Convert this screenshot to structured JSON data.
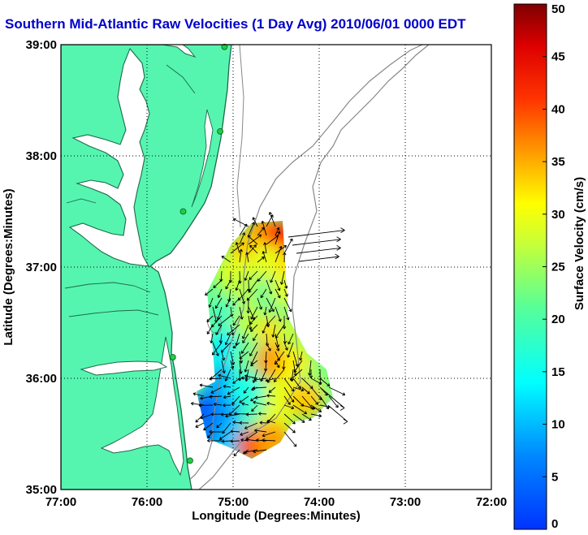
{
  "title": "Southern Mid-Atlantic Raw Velocities (1 Day Avg) 2010/06/01 0000 EDT",
  "colors": {
    "title": "#0000cc",
    "land": "#55f5b0",
    "water": "#ffffff",
    "coast": "#1e6a48",
    "bathymetry": "#888888",
    "vectors": "#000000",
    "stations": "#22cc44",
    "grid": "#000000"
  },
  "chart_data": {
    "type": "map",
    "xlabel": "Longitude (Degrees:Minutes)",
    "ylabel": "Latitude (Degrees:Minutes)",
    "x_ticks": [
      "77:00",
      "76:00",
      "75:00",
      "74:00",
      "73:00",
      "72:00"
    ],
    "y_ticks": [
      "39:00",
      "38:00",
      "37:00",
      "36:00",
      "35:00"
    ],
    "xlim": [
      -77.0,
      -72.0
    ],
    "ylim": [
      35.0,
      39.0
    ],
    "grid": "dotted",
    "legend_position": "right",
    "colorbar": {
      "label": "Surface Velocity (cm/s)",
      "range": [
        0,
        50
      ],
      "ticks": [
        "0",
        "5",
        "10",
        "15",
        "20",
        "25",
        "30",
        "35",
        "40",
        "45",
        "50"
      ],
      "colormap": "jet"
    },
    "stations": [
      {
        "lon": -75.1,
        "lat": 38.98
      },
      {
        "lon": -75.15,
        "lat": 38.22
      },
      {
        "lon": -75.58,
        "lat": 37.5
      },
      {
        "lon": -75.7,
        "lat": 36.19
      },
      {
        "lon": -75.5,
        "lat": 35.26
      }
    ],
    "velocity_field": [
      {
        "lon": -74.65,
        "lat": 37.3,
        "speed": 36
      },
      {
        "lon": -74.45,
        "lat": 37.25,
        "speed": 42
      },
      {
        "lon": -74.85,
        "lat": 37.15,
        "speed": 34
      },
      {
        "lon": -74.6,
        "lat": 37.05,
        "speed": 30
      },
      {
        "lon": -74.3,
        "lat": 37.0,
        "speed": 33
      },
      {
        "lon": -75.0,
        "lat": 36.95,
        "speed": 30
      },
      {
        "lon": -74.9,
        "lat": 36.8,
        "speed": 28
      },
      {
        "lon": -74.55,
        "lat": 36.75,
        "speed": 24
      },
      {
        "lon": -74.35,
        "lat": 36.8,
        "speed": 30
      },
      {
        "lon": -75.05,
        "lat": 36.55,
        "speed": 22
      },
      {
        "lon": -74.8,
        "lat": 36.5,
        "speed": 28
      },
      {
        "lon": -74.5,
        "lat": 36.4,
        "speed": 33
      },
      {
        "lon": -74.3,
        "lat": 36.4,
        "speed": 28
      },
      {
        "lon": -75.1,
        "lat": 36.25,
        "speed": 18
      },
      {
        "lon": -74.8,
        "lat": 36.2,
        "speed": 24
      },
      {
        "lon": -74.55,
        "lat": 36.15,
        "speed": 36
      },
      {
        "lon": -74.25,
        "lat": 36.1,
        "speed": 32
      },
      {
        "lon": -74.05,
        "lat": 35.95,
        "speed": 26
      },
      {
        "lon": -75.15,
        "lat": 35.95,
        "speed": 15
      },
      {
        "lon": -74.85,
        "lat": 35.9,
        "speed": 20
      },
      {
        "lon": -74.45,
        "lat": 35.85,
        "speed": 30
      },
      {
        "lon": -74.15,
        "lat": 35.8,
        "speed": 34
      },
      {
        "lon": -75.3,
        "lat": 35.7,
        "speed": 10
      },
      {
        "lon": -75.05,
        "lat": 35.65,
        "speed": 14
      },
      {
        "lon": -74.75,
        "lat": 35.65,
        "speed": 22
      },
      {
        "lon": -74.5,
        "lat": 35.6,
        "speed": 30
      },
      {
        "lon": -75.25,
        "lat": 35.5,
        "speed": 12
      },
      {
        "lon": -75.0,
        "lat": 35.45,
        "speed": 16
      },
      {
        "lon": -74.75,
        "lat": 35.4,
        "speed": 40
      },
      {
        "lon": -74.55,
        "lat": 35.45,
        "speed": 36
      }
    ]
  }
}
